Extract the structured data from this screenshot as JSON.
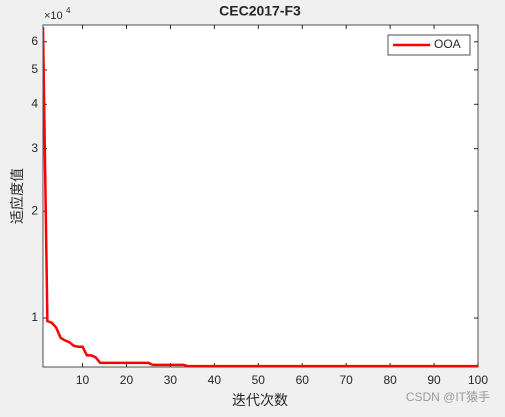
{
  "chart_data": {
    "type": "line",
    "title": "CEC2017-F3",
    "xlabel": "迭代次数",
    "ylabel": "适应度值",
    "y_exponent_base": "×10",
    "y_exponent": "4",
    "watermark": "CSDN @IT猿手",
    "x": [
      1,
      2,
      3,
      4,
      5,
      6,
      7,
      8,
      9,
      10,
      11,
      12,
      13,
      14,
      15,
      16,
      17,
      18,
      19,
      20,
      21,
      22,
      23,
      24,
      25,
      26,
      27,
      28,
      29,
      30,
      31,
      32,
      33,
      34,
      35,
      36,
      37,
      38,
      39,
      40,
      41,
      42,
      43,
      44,
      45,
      46,
      47,
      48,
      49,
      50,
      51,
      52,
      53,
      54,
      55,
      56,
      57,
      58,
      59,
      60,
      61,
      62,
      63,
      64,
      65,
      66,
      67,
      68,
      69,
      70,
      71,
      72,
      73,
      74,
      75,
      76,
      77,
      78,
      79,
      80,
      81,
      82,
      83,
      84,
      85,
      86,
      87,
      88,
      89,
      90,
      91,
      92,
      93,
      94,
      95,
      96,
      97,
      98,
      99,
      100
    ],
    "series": [
      {
        "name": "OOA",
        "color": "#ff0000",
        "values": [
          66000,
          9800,
          9700,
          9400,
          8800,
          8650,
          8550,
          8350,
          8300,
          8300,
          7850,
          7850,
          7750,
          7480,
          7480,
          7480,
          7480,
          7480,
          7480,
          7480,
          7480,
          7480,
          7480,
          7480,
          7480,
          7380,
          7380,
          7380,
          7380,
          7380,
          7380,
          7380,
          7380,
          7320,
          7320,
          7320,
          7320,
          7320,
          7320,
          7320,
          7320,
          7320,
          7320,
          7320,
          7320,
          7320,
          7320,
          7320,
          7320,
          7320,
          7320,
          7320,
          7320,
          7320,
          7320,
          7320,
          7320,
          7320,
          7320,
          7320,
          7320,
          7320,
          7320,
          7320,
          7320,
          7320,
          7320,
          7320,
          7320,
          7320,
          7320,
          7320,
          7320,
          7320,
          7320,
          7320,
          7320,
          7320,
          7320,
          7320,
          7320,
          7320,
          7320,
          7320,
          7320,
          7320,
          7320,
          7320,
          7320,
          7320,
          7320,
          7320,
          7320,
          7320,
          7320,
          7320,
          7320,
          7320,
          7320,
          7320
        ]
      }
    ],
    "xlim": [
      1,
      100
    ],
    "xticks": [
      10,
      20,
      30,
      40,
      50,
      60,
      70,
      80,
      90,
      100
    ],
    "ylim": [
      7280,
      66900
    ],
    "ylog": true,
    "yticks": [
      {
        "value": 10000,
        "label": "1"
      },
      {
        "value": 20000,
        "label": "2"
      },
      {
        "value": 30000,
        "label": "3"
      },
      {
        "value": 40000,
        "label": "4"
      },
      {
        "value": 50000,
        "label": "5"
      },
      {
        "value": 60000,
        "label": "6"
      }
    ],
    "legend": "upper right"
  }
}
